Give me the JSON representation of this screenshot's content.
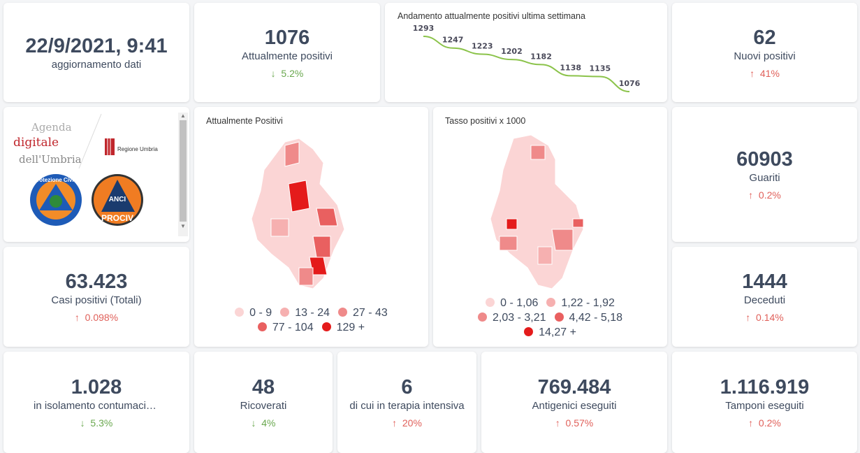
{
  "update": {
    "value": "22/9/2021, 9:41",
    "label": "aggiornamento dati"
  },
  "kpis": {
    "attuali": {
      "value": "1076",
      "label": "Attualmente positivi",
      "arrow": "↓",
      "change": "5.2%"
    },
    "nuovi": {
      "value": "62",
      "label": "Nuovi positivi",
      "arrow": "↑",
      "change": "41%"
    },
    "guariti": {
      "value": "60903",
      "label": "Guariti",
      "arrow": "↑",
      "change": "0.2%"
    },
    "casi": {
      "value": "63.423",
      "label": "Casi positivi (Totali)",
      "arrow": "↑",
      "change": "0.098%"
    },
    "deceduti": {
      "value": "1444",
      "label": "Deceduti",
      "arrow": "↑",
      "change": "0.14%"
    },
    "isolamento": {
      "value": "1.028",
      "label": "in isolamento contumaciale",
      "arrow": "↓",
      "change": "5.3%"
    },
    "ricoverati": {
      "value": "48",
      "label": "Ricoverati",
      "arrow": "↓",
      "change": "4%"
    },
    "terapia": {
      "value": "6",
      "label": "di cui in terapia intensiva",
      "arrow": "↑",
      "change": "20%"
    },
    "antigenici": {
      "value": "769.484",
      "label": "Antigenici eseguiti",
      "arrow": "↑",
      "change": "0.57%"
    },
    "tamponi": {
      "value": "1.116.919",
      "label": "Tamponi eseguiti",
      "arrow": "↑",
      "change": "0.2%"
    }
  },
  "chart_data": {
    "type": "line",
    "title": "Andamento attualmente positivi ultima settimana",
    "values": [
      1293,
      1247,
      1223,
      1202,
      1182,
      1138,
      1135,
      1076
    ],
    "labels": [
      "1293",
      "1247",
      "1223",
      "1202",
      "1182",
      "1138",
      "1135",
      "1076"
    ],
    "color": "#8bc34a"
  },
  "logos": {
    "agenda": "Agenda digitale dell'Umbria",
    "regione": "Regione Umbria",
    "protezione": "Protezione Civile",
    "anci": "ANCI UMBRIA PROCIV"
  },
  "map1": {
    "title": "Attualmente Positivi",
    "legend": [
      {
        "label": "0 - 9",
        "color": "#fbd5d5"
      },
      {
        "label": "13 - 24",
        "color": "#f6b0b0"
      },
      {
        "label": "27 - 43",
        "color": "#ef8a8a"
      },
      {
        "label": "77 - 104",
        "color": "#e96060"
      },
      {
        "label": "129 +",
        "color": "#e41b1b"
      }
    ]
  },
  "map2": {
    "title": "Tasso positivi x 1000",
    "legend": [
      {
        "label": "0 - 1,06",
        "color": "#fbd5d5"
      },
      {
        "label": "1,22 - 1,92",
        "color": "#f6b0b0"
      },
      {
        "label": "2,03 - 3,21",
        "color": "#ef8a8a"
      },
      {
        "label": "4,42 - 5,18",
        "color": "#e96060"
      },
      {
        "label": "14,27 +",
        "color": "#e41b1b"
      }
    ]
  }
}
